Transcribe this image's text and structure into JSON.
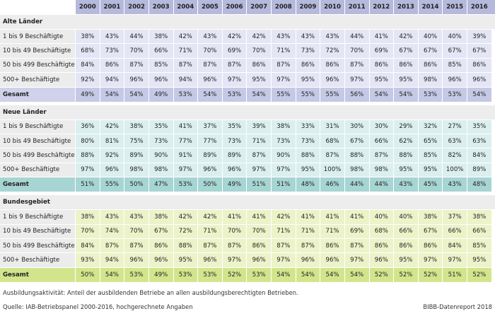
{
  "table": {
    "years": [
      "2000",
      "2001",
      "2002",
      "2003",
      "2004",
      "2005",
      "2006",
      "2007",
      "2008",
      "2009",
      "2010",
      "2011",
      "2012",
      "2013",
      "2014",
      "2015",
      "2016"
    ],
    "groups": [
      {
        "title": "Alte Länder",
        "rows": [
          {
            "label": "1 bis 9 Beschäftigte",
            "values": [
              "38%",
              "43%",
              "44%",
              "38%",
              "42%",
              "43%",
              "42%",
              "42%",
              "43%",
              "43%",
              "43%",
              "44%",
              "41%",
              "42%",
              "40%",
              "40%",
              "39%"
            ]
          },
          {
            "label": "10 bis 49 Beschäftigte",
            "values": [
              "68%",
              "73%",
              "70%",
              "66%",
              "71%",
              "70%",
              "69%",
              "70%",
              "71%",
              "73%",
              "72%",
              "70%",
              "69%",
              "67%",
              "67%",
              "67%",
              "67%"
            ]
          },
          {
            "label": "50 bis 499 Beschäftigte",
            "values": [
              "84%",
              "86%",
              "87%",
              "85%",
              "87%",
              "87%",
              "87%",
              "86%",
              "87%",
              "86%",
              "86%",
              "87%",
              "86%",
              "86%",
              "86%",
              "85%",
              "86%"
            ]
          },
          {
            "label": "500+ Beschäftigte",
            "values": [
              "92%",
              "94%",
              "96%",
              "96%",
              "94%",
              "96%",
              "97%",
              "95%",
              "97%",
              "95%",
              "96%",
              "97%",
              "95%",
              "95%",
              "98%",
              "96%",
              "96%"
            ]
          }
        ],
        "total": {
          "label": "Gesamt",
          "values": [
            "49%",
            "54%",
            "54%",
            "49%",
            "53%",
            "54%",
            "53%",
            "54%",
            "55%",
            "55%",
            "55%",
            "56%",
            "54%",
            "54%",
            "53%",
            "53%",
            "54%"
          ]
        }
      },
      {
        "title": "Neue Länder",
        "rows": [
          {
            "label": "1 bis 9 Beschäftigte",
            "values": [
              "36%",
              "42%",
              "38%",
              "35%",
              "41%",
              "37%",
              "35%",
              "39%",
              "38%",
              "33%",
              "31%",
              "30%",
              "30%",
              "29%",
              "32%",
              "27%",
              "35%"
            ]
          },
          {
            "label": "10 bis 49 Beschäftigte",
            "values": [
              "80%",
              "81%",
              "75%",
              "73%",
              "77%",
              "77%",
              "73%",
              "71%",
              "73%",
              "73%",
              "68%",
              "67%",
              "66%",
              "62%",
              "65%",
              "63%",
              "63%"
            ]
          },
          {
            "label": "50 bis 499 Beschäftigte",
            "values": [
              "88%",
              "92%",
              "89%",
              "90%",
              "91%",
              "89%",
              "89%",
              "87%",
              "90%",
              "88%",
              "87%",
              "88%",
              "87%",
              "88%",
              "85%",
              "82%",
              "84%"
            ]
          },
          {
            "label": "500+ Beschäftigte",
            "values": [
              "97%",
              "96%",
              "98%",
              "98%",
              "97%",
              "96%",
              "96%",
              "97%",
              "97%",
              "95%",
              "100%",
              "98%",
              "98%",
              "95%",
              "95%",
              "100%",
              "89%"
            ]
          }
        ],
        "total": {
          "label": "Gesamt",
          "values": [
            "51%",
            "55%",
            "50%",
            "47%",
            "53%",
            "50%",
            "49%",
            "51%",
            "51%",
            "48%",
            "46%",
            "44%",
            "44%",
            "43%",
            "45%",
            "43%",
            "48%"
          ]
        }
      },
      {
        "title": "Bundesgebiet",
        "rows": [
          {
            "label": "1 bis 9 Beschäftigte",
            "values": [
              "38%",
              "43%",
              "43%",
              "38%",
              "42%",
              "42%",
              "41%",
              "41%",
              "42%",
              "41%",
              "41%",
              "41%",
              "40%",
              "40%",
              "38%",
              "37%",
              "38%"
            ]
          },
          {
            "label": "10 bis 49 Beschäftigte",
            "values": [
              "70%",
              "74%",
              "70%",
              "67%",
              "72%",
              "71%",
              "70%",
              "70%",
              "71%",
              "71%",
              "71%",
              "69%",
              "68%",
              "66%",
              "67%",
              "66%",
              "66%"
            ]
          },
          {
            "label": "50 bis 499 Beschäftigte",
            "values": [
              "84%",
              "87%",
              "87%",
              "86%",
              "88%",
              "87%",
              "87%",
              "86%",
              "87%",
              "87%",
              "86%",
              "87%",
              "86%",
              "86%",
              "86%",
              "84%",
              "85%"
            ]
          },
          {
            "label": "500+ Beschäftigte",
            "values": [
              "93%",
              "94%",
              "96%",
              "96%",
              "95%",
              "96%",
              "97%",
              "96%",
              "97%",
              "96%",
              "96%",
              "97%",
              "96%",
              "95%",
              "97%",
              "97%",
              "95%"
            ]
          }
        ],
        "total": {
          "label": "Gesamt",
          "values": [
            "50%",
            "54%",
            "53%",
            "49%",
            "53%",
            "53%",
            "52%",
            "53%",
            "54%",
            "54%",
            "54%",
            "54%",
            "52%",
            "52%",
            "52%",
            "51%",
            "52%"
          ]
        }
      }
    ]
  },
  "footer": {
    "note": "Ausbildungsaktivität: Anteil der ausbildenden Betriebe an allen ausbildungsberechtigten Betrieben.",
    "source": "Quelle: IAB-Betriebspanel 2000-2016, hochgerechnete Angaben",
    "credit": "BIBB-Datenreport 2018"
  }
}
